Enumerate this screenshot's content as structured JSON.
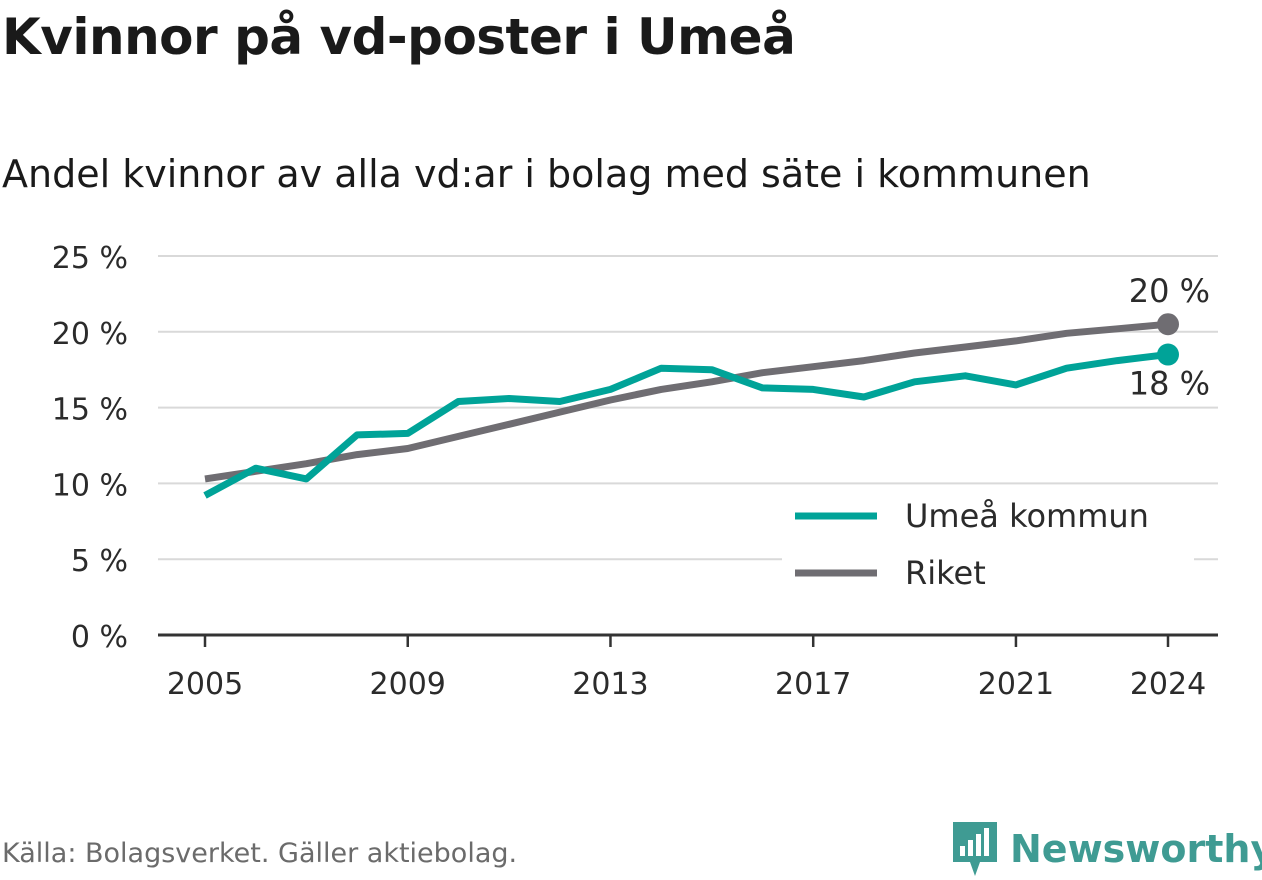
{
  "title": "Kvinnor på vd-poster i Umeå",
  "subtitle": "Andel kvinnor av alla vd:ar i bolag med säte i kommunen",
  "source": "Källa: Bolagsverket. Gäller aktiebolag.",
  "brand": "Newsworthy",
  "colors": {
    "umea": "#00a398",
    "riket": "#6f6d72",
    "grid": "#d9d9d9",
    "axis": "#333333"
  },
  "chart_data": {
    "type": "line",
    "x": [
      2005,
      2006,
      2007,
      2008,
      2009,
      2010,
      2011,
      2012,
      2013,
      2014,
      2015,
      2016,
      2017,
      2018,
      2019,
      2020,
      2021,
      2022,
      2023,
      2024
    ],
    "series": [
      {
        "name": "Umeå kommun",
        "color": "#00a398",
        "values": [
          9.2,
          11.0,
          10.3,
          13.2,
          13.3,
          15.4,
          15.6,
          15.4,
          16.2,
          17.6,
          17.5,
          16.3,
          16.2,
          15.7,
          16.7,
          17.1,
          16.5,
          17.6,
          18.1,
          18.5
        ]
      },
      {
        "name": "Riket",
        "color": "#6f6d72",
        "values": [
          10.3,
          10.8,
          11.3,
          11.9,
          12.3,
          13.1,
          13.9,
          14.7,
          15.5,
          16.2,
          16.7,
          17.3,
          17.7,
          18.1,
          18.6,
          19.0,
          19.4,
          19.9,
          20.2,
          20.5
        ]
      }
    ],
    "end_labels": {
      "Umeå kommun": "18 %",
      "Riket": "20 %"
    },
    "yticks": [
      "0 %",
      "5 %",
      "10 %",
      "15 %",
      "20 %",
      "25 %"
    ],
    "ytick_values": [
      0,
      5,
      10,
      15,
      20,
      25
    ],
    "xticks": [
      "2005",
      "2009",
      "2013",
      "2017",
      "2021",
      "2024"
    ],
    "xtick_values": [
      2005,
      2009,
      2013,
      2017,
      2021,
      2024
    ],
    "ylim": [
      0,
      25
    ],
    "xlim": [
      2005,
      2024
    ],
    "grid": true,
    "legend": "bottom-right"
  }
}
